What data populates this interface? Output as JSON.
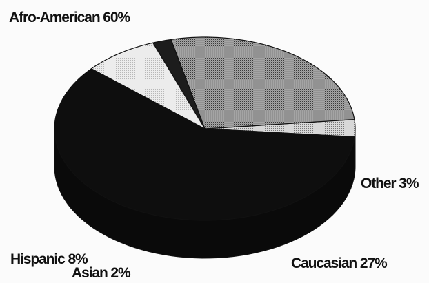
{
  "chart_data": {
    "type": "pie",
    "style": "3d",
    "title": "",
    "slices": [
      {
        "label": "Afro-American 60%",
        "category": "Afro-American",
        "value": 60
      },
      {
        "label": "Caucasian 27%",
        "category": "Caucasian",
        "value": 27
      },
      {
        "label": "Asian 2%",
        "category": "Asian",
        "value": 2
      },
      {
        "label": "Hispanic 8%",
        "category": "Hispanic",
        "value": 8
      },
      {
        "label": "Other 3%",
        "category": "Other",
        "value": 3
      }
    ],
    "colors": {
      "Afro-American": "#0e0e0e",
      "Caucasian": "#8c8c8c",
      "Asian": "#1c1c1c",
      "Hispanic": "#e4e4e4",
      "Other": "#c9c9c9"
    },
    "side_colors": {
      "Afro-American": "#0a0a0a",
      "Caucasian": "#4d4d4d",
      "Asian": "#151515",
      "Hispanic": "#9a9a9a",
      "Other": "#6a6a6a"
    }
  }
}
